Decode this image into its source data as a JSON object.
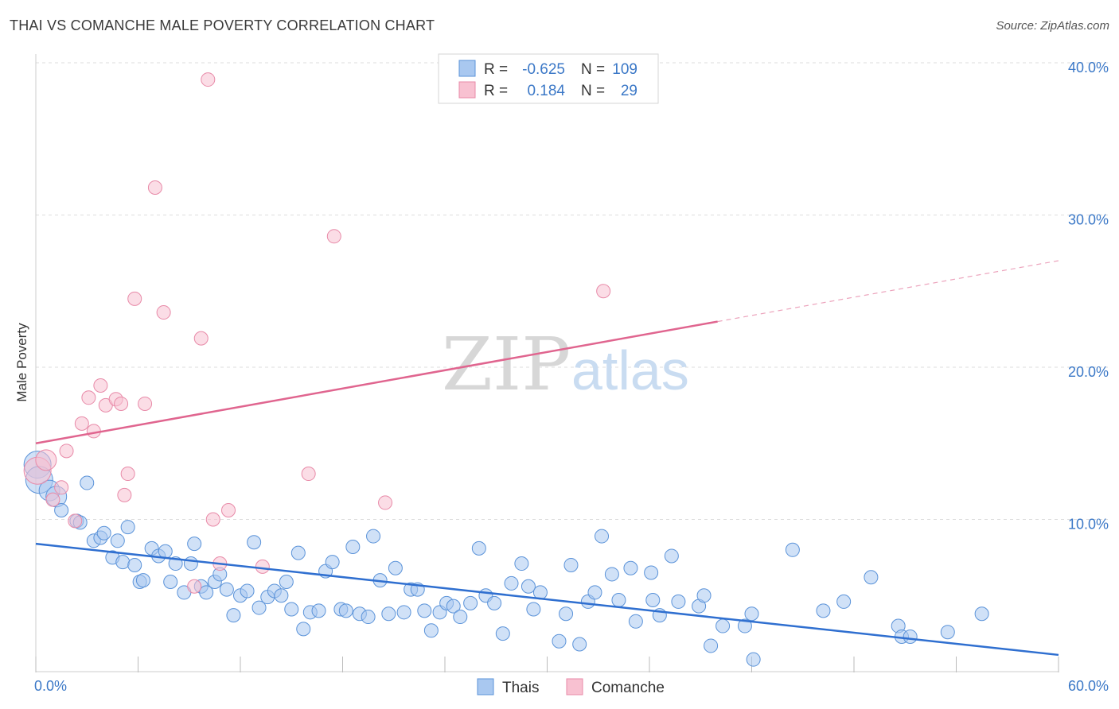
{
  "title": "THAI VS COMANCHE MALE POVERTY CORRELATION CHART",
  "source": "Source: ZipAtlas.com",
  "watermark": {
    "zip": "ZIP",
    "atlas": "atlas"
  },
  "legend": {
    "rows": [
      {
        "r_label": "R =",
        "r_value": "-0.625",
        "n_label": "N =",
        "n_value": "109",
        "color": "#a9c8f0",
        "stroke": "#5b93d9"
      },
      {
        "r_label": "R =",
        "r_value": "0.184",
        "n_label": "N =",
        "n_value": "29",
        "color": "#f8c1d1",
        "stroke": "#e88aa8"
      }
    ]
  },
  "bottom_legend": [
    {
      "label": "Thais",
      "color": "#a9c8f0",
      "stroke": "#5b93d9"
    },
    {
      "label": "Comanche",
      "color": "#f8c1d1",
      "stroke": "#e88aa8"
    }
  ],
  "colors": {
    "thais_line": "#2f6fd0",
    "comanche_line": "#e0658f",
    "tick_text": "#3b78c7",
    "grid": "#dddddd"
  },
  "chart_data": {
    "type": "scatter",
    "title": "THAI VS COMANCHE MALE POVERTY CORRELATION CHART",
    "xlabel": "",
    "ylabel": "Male Poverty",
    "xlim": [
      0,
      60
    ],
    "ylim": [
      0,
      40
    ],
    "x_tick_labels": [
      "0.0%",
      "60.0%"
    ],
    "y_ticks": [
      10,
      20,
      30,
      40
    ],
    "y_tick_labels": [
      "10.0%",
      "20.0%",
      "30.0%",
      "40.0%"
    ],
    "grid": true,
    "legend_position": "top-center",
    "series": [
      {
        "name": "Thais",
        "color": "#a9c8f0",
        "r": -0.625,
        "n": 109,
        "trend": {
          "x": [
            0,
            60
          ],
          "y": [
            8.4,
            1.1
          ],
          "dashed_from": null
        },
        "points": [
          [
            0.1,
            13.6,
            3
          ],
          [
            0.2,
            12.6,
            3
          ],
          [
            0.8,
            11.9,
            2
          ],
          [
            1.2,
            11.5,
            2
          ],
          [
            1.5,
            10.6,
            1
          ],
          [
            2.4,
            9.9,
            1
          ],
          [
            2.6,
            9.8,
            1
          ],
          [
            3.0,
            12.4,
            1
          ],
          [
            3.4,
            8.6,
            1
          ],
          [
            3.8,
            8.8,
            1
          ],
          [
            4.0,
            9.1,
            1
          ],
          [
            4.5,
            7.5,
            1
          ],
          [
            4.8,
            8.6,
            1
          ],
          [
            5.1,
            7.2,
            1
          ],
          [
            5.4,
            9.5,
            1
          ],
          [
            5.8,
            7.0,
            1
          ],
          [
            6.1,
            5.9,
            1
          ],
          [
            6.3,
            6.0,
            1
          ],
          [
            6.8,
            8.1,
            1
          ],
          [
            7.2,
            7.6,
            1
          ],
          [
            7.6,
            7.9,
            1
          ],
          [
            7.9,
            5.9,
            1
          ],
          [
            8.2,
            7.1,
            1
          ],
          [
            8.7,
            5.2,
            1
          ],
          [
            9.1,
            7.1,
            1
          ],
          [
            9.3,
            8.4,
            1
          ],
          [
            9.7,
            5.6,
            1
          ],
          [
            10.0,
            5.2,
            1
          ],
          [
            10.5,
            5.9,
            1
          ],
          [
            10.8,
            6.4,
            1
          ],
          [
            11.2,
            5.4,
            1
          ],
          [
            11.6,
            3.7,
            1
          ],
          [
            12.0,
            5.0,
            1
          ],
          [
            12.4,
            5.3,
            1
          ],
          [
            12.8,
            8.5,
            1
          ],
          [
            13.1,
            4.2,
            1
          ],
          [
            13.6,
            4.9,
            1
          ],
          [
            14.0,
            5.3,
            1
          ],
          [
            14.4,
            5.0,
            1
          ],
          [
            14.7,
            5.9,
            1
          ],
          [
            15.0,
            4.1,
            1
          ],
          [
            15.4,
            7.8,
            1
          ],
          [
            15.7,
            2.8,
            1
          ],
          [
            16.1,
            3.9,
            1
          ],
          [
            16.6,
            4.0,
            1
          ],
          [
            17.0,
            6.6,
            1
          ],
          [
            17.4,
            7.2,
            1
          ],
          [
            17.9,
            4.1,
            1
          ],
          [
            18.2,
            4.0,
            1
          ],
          [
            18.6,
            8.2,
            1
          ],
          [
            19.0,
            3.8,
            1
          ],
          [
            19.5,
            3.6,
            1
          ],
          [
            19.8,
            8.9,
            1
          ],
          [
            20.2,
            6.0,
            1
          ],
          [
            20.7,
            3.8,
            1
          ],
          [
            21.1,
            6.8,
            1
          ],
          [
            21.6,
            3.9,
            1
          ],
          [
            22.0,
            5.4,
            1
          ],
          [
            22.4,
            5.4,
            1
          ],
          [
            22.8,
            4.0,
            1
          ],
          [
            23.2,
            2.7,
            1
          ],
          [
            23.7,
            3.9,
            1
          ],
          [
            24.1,
            4.5,
            1
          ],
          [
            24.5,
            4.3,
            1
          ],
          [
            24.9,
            3.6,
            1
          ],
          [
            25.5,
            4.5,
            1
          ],
          [
            26.0,
            8.1,
            1
          ],
          [
            26.4,
            5.0,
            1
          ],
          [
            26.9,
            4.5,
            1
          ],
          [
            27.4,
            2.5,
            1
          ],
          [
            27.9,
            5.8,
            1
          ],
          [
            28.5,
            7.1,
            1
          ],
          [
            28.9,
            5.6,
            1
          ],
          [
            29.2,
            4.1,
            1
          ],
          [
            29.6,
            5.2,
            1
          ],
          [
            30.7,
            2.0,
            1
          ],
          [
            31.1,
            3.8,
            1
          ],
          [
            31.4,
            7.0,
            1
          ],
          [
            31.9,
            1.8,
            1
          ],
          [
            32.4,
            4.6,
            1
          ],
          [
            32.8,
            5.2,
            1
          ],
          [
            33.2,
            8.9,
            1
          ],
          [
            33.8,
            6.4,
            1
          ],
          [
            34.2,
            4.7,
            1
          ],
          [
            34.9,
            6.8,
            1
          ],
          [
            35.2,
            3.3,
            1
          ],
          [
            36.1,
            6.5,
            1
          ],
          [
            36.2,
            4.7,
            1
          ],
          [
            36.6,
            3.7,
            1
          ],
          [
            37.3,
            7.6,
            1
          ],
          [
            37.7,
            4.6,
            1
          ],
          [
            38.9,
            4.3,
            1
          ],
          [
            39.2,
            5.0,
            1
          ],
          [
            39.6,
            1.7,
            1
          ],
          [
            40.3,
            3.0,
            1
          ],
          [
            41.6,
            3.0,
            1
          ],
          [
            42.0,
            3.8,
            1
          ],
          [
            42.1,
            0.8,
            1
          ],
          [
            44.4,
            8.0,
            1
          ],
          [
            46.2,
            4.0,
            1
          ],
          [
            47.4,
            4.6,
            1
          ],
          [
            49.0,
            6.2,
            1
          ],
          [
            50.6,
            3.0,
            1
          ],
          [
            50.8,
            2.3,
            1
          ],
          [
            51.3,
            2.3,
            1
          ],
          [
            53.5,
            2.6,
            1
          ],
          [
            55.5,
            3.8,
            1
          ]
        ]
      },
      {
        "name": "Comanche",
        "color": "#f8c1d1",
        "r": 0.184,
        "n": 29,
        "trend": {
          "x": [
            0,
            60
          ],
          "y": [
            15.0,
            27.0
          ],
          "dashed_from": 40.0
        },
        "points": [
          [
            0.1,
            13.2,
            3
          ],
          [
            0.6,
            13.9,
            2
          ],
          [
            1.0,
            11.3,
            1
          ],
          [
            1.5,
            12.1,
            1
          ],
          [
            1.8,
            14.5,
            1
          ],
          [
            2.3,
            9.9,
            1
          ],
          [
            2.7,
            16.3,
            1
          ],
          [
            3.1,
            18.0,
            1
          ],
          [
            3.4,
            15.8,
            1
          ],
          [
            3.8,
            18.8,
            1
          ],
          [
            4.1,
            17.5,
            1
          ],
          [
            4.7,
            17.9,
            1
          ],
          [
            5.0,
            17.6,
            1
          ],
          [
            5.2,
            11.6,
            1
          ],
          [
            5.4,
            13.0,
            1
          ],
          [
            5.8,
            24.5,
            1
          ],
          [
            6.4,
            17.6,
            1
          ],
          [
            7.0,
            31.8,
            1
          ],
          [
            7.5,
            23.6,
            1
          ],
          [
            9.3,
            5.6,
            1
          ],
          [
            9.7,
            21.9,
            1
          ],
          [
            10.1,
            38.9,
            1
          ],
          [
            10.4,
            10.0,
            1
          ],
          [
            10.8,
            7.1,
            1
          ],
          [
            11.3,
            10.6,
            1
          ],
          [
            13.3,
            6.9,
            1
          ],
          [
            16.0,
            13.0,
            1
          ],
          [
            17.5,
            28.6,
            1
          ],
          [
            20.5,
            11.1,
            1
          ],
          [
            33.3,
            25.0,
            1
          ]
        ]
      }
    ]
  }
}
